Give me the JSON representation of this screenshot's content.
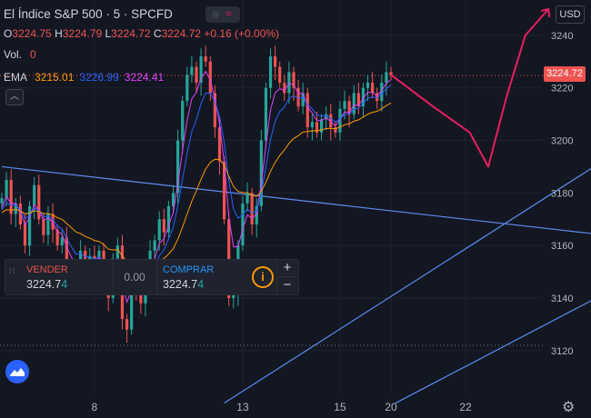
{
  "header": {
    "title": "El Índice S&P 500 · 5 · SPCFD",
    "ohlc": {
      "o_label": "O",
      "o": "3224.75",
      "h_label": "H",
      "h": "3224.79",
      "l_label": "L",
      "l": "3224.72",
      "c_label": "C",
      "c": "3224.72",
      "change": "+0.16 (+0.00%)"
    },
    "vol_label": "Vol.",
    "vol": "0",
    "ema_label": "EMA",
    "ema_values": [
      "3215.01",
      "3226.99",
      "3224.41"
    ],
    "collapse_icon": "chevron-up-icon"
  },
  "currency": "USD",
  "current_price": "3224.72",
  "trade_panel": {
    "sell_label": "VENDER",
    "sell_price_main": "3224.7",
    "sell_price_last": "4",
    "spread": "0.00",
    "buy_label": "COMPRAR",
    "buy_price_main": "3224.7",
    "buy_price_last": "4",
    "info_icon": "i",
    "plus": "+",
    "minus": "−"
  },
  "colors": {
    "background": "#131722",
    "up": "#26a69a",
    "down": "#ef5350",
    "ema_fast": "#ff9800",
    "ema_mid": "#2962ff",
    "ema_slow": "#e040fb",
    "trendline": "#5b8def",
    "drawing": "#e91e63"
  },
  "chart_data": {
    "type": "candlestick",
    "x_ticks": [
      "8",
      "13",
      "15",
      "20",
      "22"
    ],
    "y_ticks": [
      3120,
      3140,
      3160,
      3180,
      3200,
      3220,
      3240
    ],
    "ylim": [
      3104,
      3250
    ],
    "current_price": 3224.72,
    "closes": [
      3178,
      3185,
      3172,
      3176,
      3168,
      3160,
      3175,
      3183,
      3170,
      3164,
      3172,
      3166,
      3160,
      3163,
      3152,
      3150,
      3148,
      3158,
      3152,
      3156,
      3152,
      3158,
      3148,
      3140,
      3155,
      3160,
      3132,
      3128,
      3150,
      3142,
      3138,
      3150,
      3158,
      3162,
      3170,
      3165,
      3175,
      3180,
      3200,
      3215,
      3225,
      3228,
      3222,
      3232,
      3230,
      3218,
      3205,
      3192,
      3170,
      3140,
      3142,
      3160,
      3176,
      3180,
      3168,
      3175,
      3200,
      3220,
      3232,
      3228,
      3222,
      3218,
      3226,
      3220,
      3213,
      3218,
      3205,
      3207,
      3203,
      3208,
      3210,
      3205,
      3203,
      3212,
      3215,
      3210,
      3218,
      3213,
      3220,
      3222,
      3218,
      3215,
      3222,
      3226,
      3225
    ],
    "trendlines": [
      {
        "from": [
          0,
          3190
        ],
        "to": [
          150,
          3160
        ]
      },
      {
        "from": [
          48,
          3100
        ],
        "to": [
          150,
          3215
        ]
      },
      {
        "from": [
          85,
          3100
        ],
        "to": [
          150,
          3160
        ]
      }
    ],
    "dotted_levels": [
      3224.72,
      3122
    ]
  }
}
